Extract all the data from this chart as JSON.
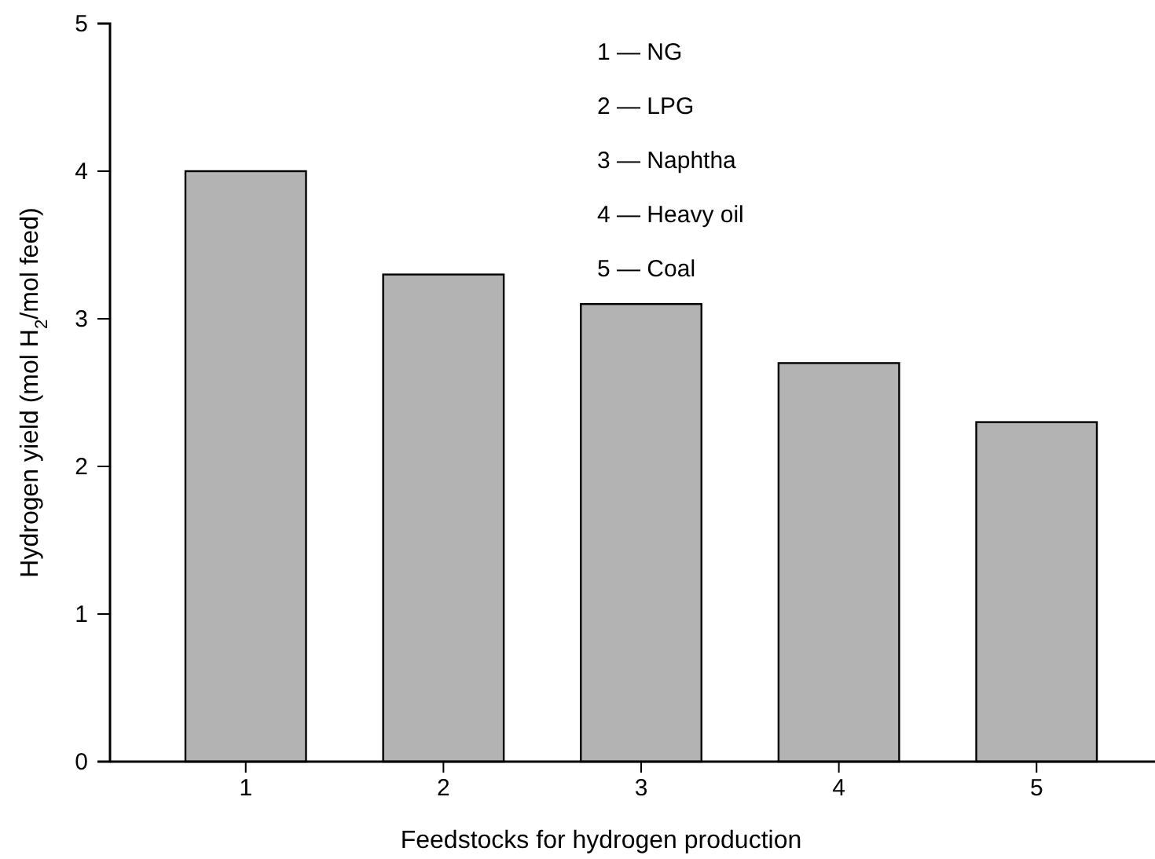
{
  "chart_data": {
    "type": "bar",
    "xlabel": "Feedstocks for hydrogen production",
    "ylabel": "Hydrogen yield (mol H$_{2}$/mol feed)",
    "categories": [
      "1",
      "2",
      "3",
      "4",
      "5"
    ],
    "values": [
      4.0,
      3.3,
      3.1,
      2.7,
      2.3
    ],
    "color": "#b3b3b3",
    "ylim": [
      0,
      5
    ],
    "yticks": [
      0,
      1,
      2,
      3,
      4,
      5
    ],
    "grid": false,
    "annotations": [
      "1 — NG",
      "2 — LPG",
      "3 — Naphtha",
      "4 — Heavy oil",
      "5 — Coal"
    ]
  }
}
